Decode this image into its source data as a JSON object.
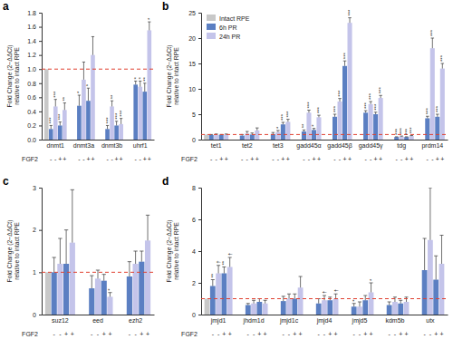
{
  "chart_data": [
    {
      "type": "bar",
      "panel": "a",
      "categories": [
        "dnmt1",
        "dnmt3a",
        "dnmt3b",
        "uhrf1"
      ],
      "ylabel": [
        "Fold Change (2−ΔΔCt)",
        "relative to intact RPE"
      ],
      "ylim": [
        0,
        1.8
      ],
      "yticks": [
        {
          "value": 0,
          "label": "0.0"
        },
        0.2,
        0.4,
        0.6,
        0.8,
        {
          "value": 1,
          "label": "1.0"
        },
        1.2,
        1.4,
        1.6,
        1.8
      ],
      "reference_line": 1,
      "fgf2_label": "FGF2",
      "series": [
        {
          "name": "Intact RPE",
          "color": "#c8c8c8",
          "values": [
            1,
            null,
            null,
            null
          ]
        },
        {
          "name": "6h PR",
          "fgf2": "-",
          "color": "#5b7fc2",
          "values": [
            0.15,
            0.48,
            0.15,
            0.78
          ],
          "errors": [
            0.05,
            0.15,
            0.05,
            0.05
          ],
          "significance": [
            "***",
            "*",
            "***",
            "*"
          ]
        },
        {
          "name": "24h PR",
          "fgf2": "-",
          "color": "#c4c4ea",
          "values": [
            0.47,
            0.85,
            0.47,
            0.75
          ],
          "errors": [
            0.1,
            0.25,
            0.08,
            0.08
          ],
          "significance": [
            "***",
            null,
            "**",
            "*"
          ]
        },
        {
          "name": "6h PR",
          "fgf2": "+",
          "color": "#5b7fc2",
          "values": [
            0.2,
            0.55,
            0.2,
            0.68
          ],
          "errors": [
            0.05,
            0.18,
            0.06,
            0.12
          ],
          "significance": [
            "***",
            "*",
            "***",
            "**"
          ]
        },
        {
          "name": "24h PR",
          "fgf2": "+",
          "color": "#c4c4ea",
          "values": [
            0.42,
            1.2,
            0.22,
            1.55
          ],
          "errors": [
            0.1,
            0.26,
            0.08,
            0.12
          ],
          "significance": [
            "**",
            null,
            "***",
            "*"
          ]
        }
      ]
    },
    {
      "type": "bar",
      "panel": "b",
      "categories": [
        "tet1",
        "tet2",
        "tet3",
        "gadd45α",
        "gadd45β",
        "gadd45γ",
        "tdg",
        "prdm14"
      ],
      "ylabel": [
        "Fold Change (2−ΔΔCt)",
        "relative to intact RPE"
      ],
      "ylim": [
        0,
        25
      ],
      "yticks": [
        0,
        5,
        10,
        15,
        20,
        25
      ],
      "reference_line": 1,
      "fgf2_label": "FGF2",
      "legend": "top-left",
      "series": [
        {
          "name": "Intact RPE",
          "color": "#c8c8c8",
          "values": [
            1,
            null,
            null,
            null,
            null,
            null,
            null,
            null
          ]
        },
        {
          "name": "6h PR",
          "fgf2": "-",
          "color": "#5b7fc2",
          "values": [
            0.9,
            0.8,
            1.1,
            1.6,
            4.5,
            5.3,
            0.5,
            4.2
          ],
          "errors": [
            0.1,
            0.2,
            0.3,
            0.3,
            0.5,
            0.4,
            0.05,
            0.4
          ],
          "significance": [
            null,
            null,
            null,
            "**",
            "***",
            "***",
            "***",
            "***"
          ]
        },
        {
          "name": "24h PR",
          "fgf2": "-",
          "color": "#c4c4ea",
          "values": [
            1.0,
            1.2,
            1.5,
            5.3,
            7.5,
            7.0,
            0.6,
            18.0
          ],
          "errors": [
            0.1,
            0.4,
            0.3,
            0.5,
            0.6,
            0.5,
            0.1,
            2.0
          ],
          "significance": [
            null,
            null,
            "*",
            "***",
            "***",
            "***",
            "***",
            "***"
          ]
        },
        {
          "name": "6h PR",
          "fgf2": "+",
          "color": "#5b7fc2",
          "values": [
            0.9,
            1.0,
            3.0,
            1.9,
            14.5,
            5.0,
            0.5,
            4.5
          ],
          "errors": [
            0.1,
            0.3,
            0.4,
            0.3,
            1.0,
            0.4,
            0.05,
            0.5
          ],
          "significance": [
            null,
            null,
            "***",
            "*",
            "***",
            "***",
            "***",
            "***"
          ]
        },
        {
          "name": "24h PR",
          "fgf2": "+",
          "color": "#c4c4ea",
          "values": [
            1.0,
            1.8,
            3.5,
            4.4,
            23.0,
            8.2,
            0.7,
            14.0
          ],
          "errors": [
            0.1,
            0.5,
            0.5,
            0.4,
            1.0,
            0.5,
            0.1,
            1.0
          ],
          "significance": [
            null,
            null,
            "***",
            "***",
            "***",
            "***",
            "***",
            "***"
          ]
        }
      ]
    },
    {
      "type": "bar",
      "panel": "c",
      "categories": [
        "suz12",
        "eed",
        "ezh2"
      ],
      "ylabel": [
        "Fold Change (2−ΔΔCt)",
        "relative to intact RPE"
      ],
      "ylim": [
        0,
        3
      ],
      "yticks": [
        0,
        1,
        2,
        3
      ],
      "reference_line": 1,
      "fgf2_label": "FGF2",
      "series": [
        {
          "name": "Intact RPE",
          "color": "#c8c8c8",
          "values": [
            1,
            null,
            null
          ]
        },
        {
          "name": "6h PR",
          "fgf2": "-",
          "color": "#5b7fc2",
          "values": [
            1.0,
            0.62,
            0.9
          ],
          "errors": [
            0.35,
            0.3,
            0.35
          ]
        },
        {
          "name": "24h PR",
          "fgf2": "-",
          "color": "#c4c4ea",
          "values": [
            1.2,
            0.85,
            1.2
          ],
          "errors": [
            0.6,
            0.2,
            0.3
          ]
        },
        {
          "name": "6h PR",
          "fgf2": "+",
          "color": "#5b7fc2",
          "values": [
            1.2,
            0.8,
            1.25
          ],
          "errors": [
            0.8,
            0.15,
            0.25
          ]
        },
        {
          "name": "24h PR",
          "fgf2": "+",
          "color": "#c4c4ea",
          "values": [
            1.7,
            0.42,
            1.75
          ],
          "errors": [
            1.25,
            0.1,
            0.6
          ],
          "significance": [
            null,
            "*",
            null
          ]
        }
      ]
    },
    {
      "type": "bar",
      "panel": "d",
      "categories": [
        "jmjd1",
        "jhdm1d",
        "jmjd1c",
        "jmjd4",
        "jmjd5",
        "kdm5b",
        "utx"
      ],
      "ylabel": [
        "Fold Change (2−ΔΔCt)",
        "relative to intact RPE"
      ],
      "ylim": [
        0,
        8
      ],
      "yticks": [
        0,
        2,
        4,
        6,
        8
      ],
      "reference_line": 1,
      "fgf2_label": "FGF2",
      "series": [
        {
          "name": "Intact RPE",
          "color": "#c8c8c8",
          "values": [
            1,
            null,
            null,
            null,
            null,
            null,
            null
          ]
        },
        {
          "name": "6h PR",
          "fgf2": "-",
          "color": "#5b7fc2",
          "values": [
            1.8,
            0.6,
            0.85,
            0.7,
            0.5,
            0.6,
            2.8
          ],
          "errors": [
            0.4,
            0.1,
            0.3,
            0.3,
            0.2,
            0.2,
            2.0
          ],
          "significance": [
            "**",
            null,
            null,
            null,
            "*",
            null,
            null
          ]
        },
        {
          "name": "24h PR",
          "fgf2": "-",
          "color": "#c4c4ea",
          "values": [
            2.6,
            0.7,
            1.0,
            0.9,
            0.5,
            0.8,
            4.7
          ],
          "errors": [
            0.5,
            0.2,
            0.3,
            0.3,
            0.3,
            0.3,
            3.3
          ],
          "significance": [
            "†",
            null,
            null,
            "†",
            null,
            null,
            null
          ]
        },
        {
          "name": "6h PR",
          "fgf2": "+",
          "color": "#5b7fc2",
          "values": [
            2.6,
            0.8,
            1.0,
            0.9,
            0.9,
            0.7,
            2.2
          ],
          "errors": [
            0.4,
            0.2,
            0.3,
            0.2,
            0.3,
            0.2,
            1.5
          ],
          "significance": [
            "**",
            null,
            null,
            null,
            null,
            null,
            null
          ]
        },
        {
          "name": "24h PR",
          "fgf2": "+",
          "color": "#c4c4ea",
          "values": [
            3.0,
            0.7,
            1.7,
            1.0,
            1.4,
            0.8,
            3.2
          ],
          "errors": [
            0.6,
            0.2,
            0.7,
            0.3,
            0.6,
            0.3,
            1.8
          ],
          "significance": [
            "†",
            null,
            null,
            "†",
            "*",
            null,
            null
          ]
        }
      ]
    }
  ]
}
